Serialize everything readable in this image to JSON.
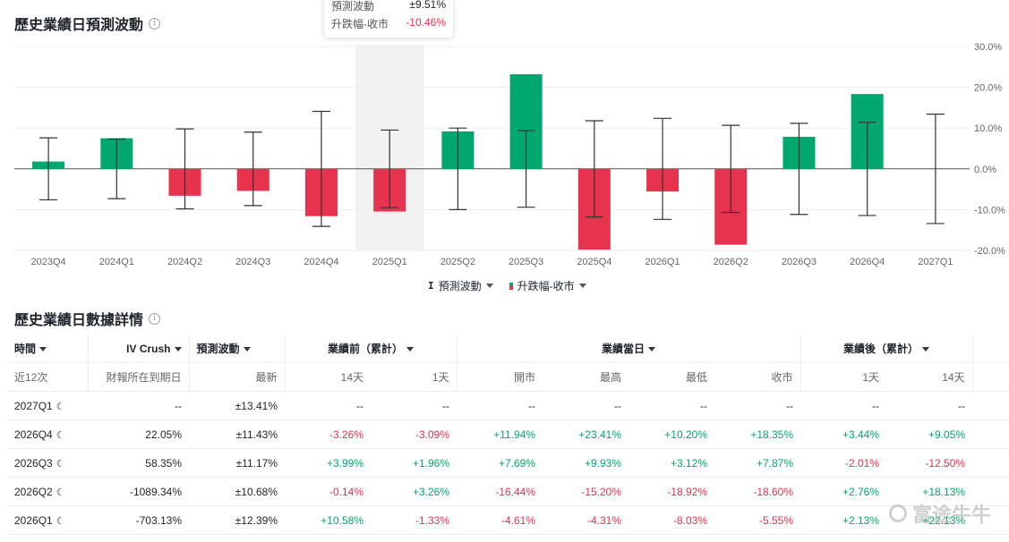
{
  "chart_section": {
    "title": "歷史業績日預測波動",
    "info_icon": "info-circle-icon"
  },
  "tooltip": {
    "row1_label": "預測波動",
    "row1_value": "±9.51%",
    "row2_label": "升跌幅-收市",
    "row2_value": "-10.46%"
  },
  "legend": {
    "series1": "預測波動",
    "series2": "升跌幅-收市"
  },
  "colors": {
    "up": "#00a870",
    "down": "#e8334f",
    "errorbar": "#333333",
    "highlight": "#f2f2f2"
  },
  "chart_data": {
    "type": "bar",
    "categories": [
      "2023Q4",
      "2024Q1",
      "2024Q2",
      "2024Q3",
      "2024Q4",
      "2025Q1",
      "2025Q2",
      "2025Q3",
      "2025Q4",
      "2026Q1",
      "2026Q2",
      "2026Q3",
      "2026Q4",
      "2027Q1"
    ],
    "series": [
      {
        "name": "升跌幅-收市",
        "values": [
          1.8,
          7.5,
          -6.6,
          -5.4,
          -11.6,
          -10.46,
          9.2,
          23.2,
          -19.8,
          -5.55,
          -18.6,
          7.87,
          18.35,
          null
        ]
      },
      {
        "name": "預測波動",
        "values": [
          7.6,
          7.3,
          9.8,
          9.0,
          14.1,
          9.51,
          10.0,
          9.4,
          11.8,
          12.39,
          10.68,
          11.17,
          11.43,
          13.41
        ]
      }
    ],
    "error_bar_center": "zero",
    "ylim": [
      -20,
      30
    ],
    "yticks": [
      "30.0%",
      "20.0%",
      "10.0%",
      "0.0%",
      "-10.0%",
      "-20.0%"
    ],
    "yaxis_position": "right",
    "highlighted_category": "2025Q1",
    "grid": true,
    "legend_position": "bottom-center"
  },
  "table_section": {
    "title": "歷史業績日數據詳情",
    "info_icon": "info-circle-icon"
  },
  "table": {
    "header1": {
      "time": "時間",
      "iv_crush": "IV Crush",
      "forecast": "預測波動",
      "before": "業績前（累計）",
      "day": "業績當日",
      "after": "業績後（累計）"
    },
    "header2": [
      "近12次",
      "財報所在到期日",
      "最新",
      "14天",
      "1天",
      "開市",
      "最高",
      "最低",
      "收市",
      "1天",
      "14天"
    ],
    "rows": [
      {
        "cells": [
          "2027Q1",
          "--",
          "±13.41%",
          "--",
          "--",
          "--",
          "--",
          "--",
          "--",
          "--",
          "--"
        ]
      },
      {
        "cells": [
          "2026Q4",
          "22.05%",
          "±11.43%",
          "-3.26%",
          "-3.09%",
          "+11.94%",
          "+23.41%",
          "+10.20%",
          "+18.35%",
          "+3.44%",
          "+9.05%"
        ]
      },
      {
        "cells": [
          "2026Q3",
          "58.35%",
          "±11.17%",
          "+3.99%",
          "+1.96%",
          "+7.69%",
          "+9.93%",
          "+3.12%",
          "+7.87%",
          "-2.01%",
          "-12.50%"
        ]
      },
      {
        "cells": [
          "2026Q2",
          "-1089.34%",
          "±10.68%",
          "-0.14%",
          "+3.26%",
          "-16.44%",
          "-15.20%",
          "-18.92%",
          "-18.60%",
          "+2.76%",
          "+18.13%"
        ]
      },
      {
        "cells": [
          "2026Q1",
          "-703.13%",
          "±12.39%",
          "+10.58%",
          "-1.33%",
          "-4.61%",
          "-4.31%",
          "-8.03%",
          "-5.55%",
          "+2.13%",
          "+22.13%"
        ]
      }
    ]
  },
  "watermark": {
    "text": "富途牛牛"
  }
}
